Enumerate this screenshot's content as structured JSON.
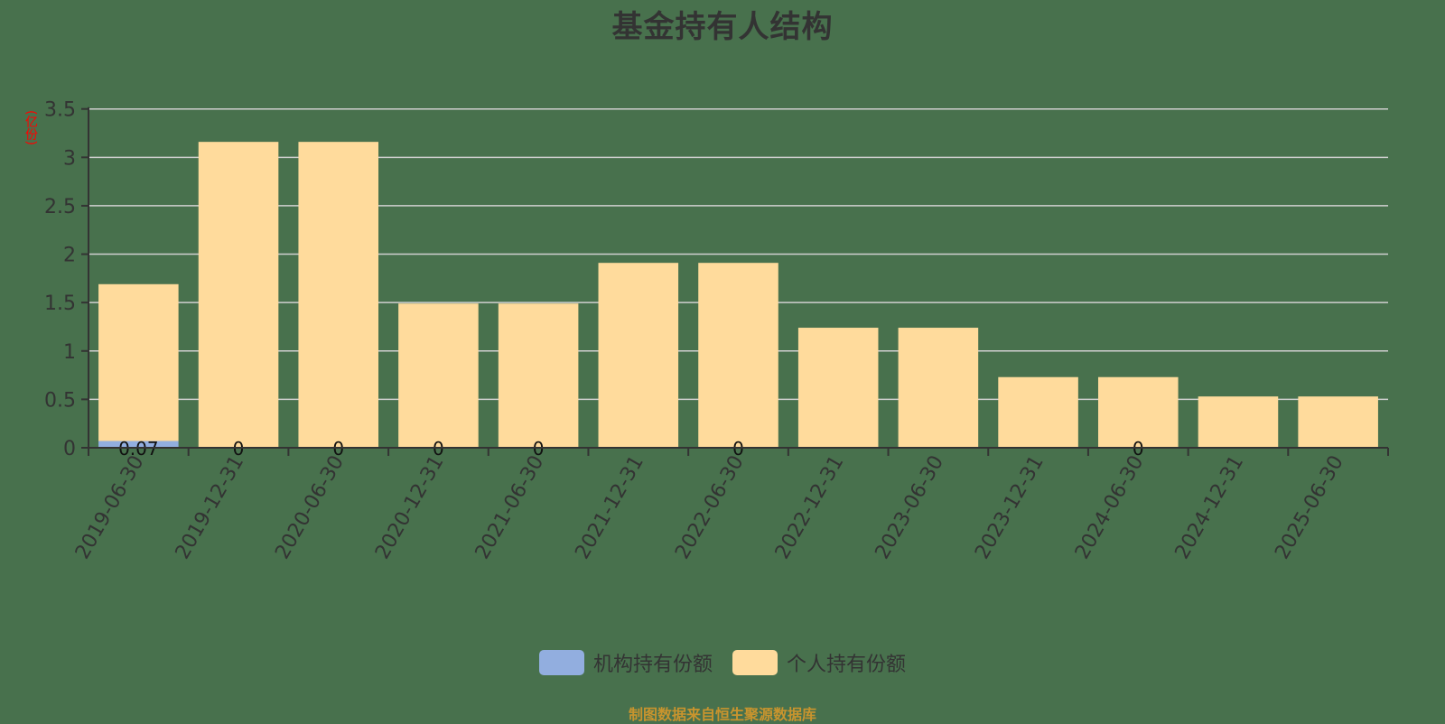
{
  "title": "基金持有人结构",
  "y_unit": "(亿份)",
  "footer": "制图数据来自恒生聚源数据库",
  "colors": {
    "background": "#48714D",
    "institutional": "#92AEDF",
    "individual": "#FFDB9C",
    "grid": "#D0D0D0",
    "axis": "#333333"
  },
  "legend": [
    {
      "label": "机构持有份额",
      "color": "#92AEDF"
    },
    {
      "label": "个人持有份额",
      "color": "#FFDB9C"
    }
  ],
  "chart_data": {
    "type": "bar",
    "stacked": true,
    "title": "基金持有人结构",
    "xlabel": "",
    "ylabel": "(亿份)",
    "ylim": [
      0,
      3.5
    ],
    "yticks": [
      0,
      0.5,
      1,
      1.5,
      2,
      2.5,
      3,
      3.5
    ],
    "grid": true,
    "legend_position": "bottom",
    "categories": [
      "2019-06-30",
      "2019-12-31",
      "2020-06-30",
      "2020-12-31",
      "2021-06-30",
      "2021-12-31",
      "2022-06-30",
      "2022-12-31",
      "2023-06-30",
      "2023-12-31",
      "2024-06-30",
      "2024-12-31",
      "2025-06-30"
    ],
    "series": [
      {
        "name": "机构持有份额",
        "values": [
          0.07,
          0,
          0,
          0,
          0,
          0,
          0,
          0,
          0,
          0,
          0,
          0,
          0
        ],
        "data_labels": [
          "0.07",
          "0",
          "0",
          "0",
          "0",
          "",
          "0",
          "",
          "",
          "",
          "0",
          "",
          ""
        ]
      },
      {
        "name": "个人持有份额",
        "values": [
          1.62,
          3.16,
          3.16,
          1.49,
          1.49,
          1.91,
          1.91,
          1.24,
          1.24,
          0.73,
          0.73,
          0.53,
          0.53
        ]
      }
    ]
  }
}
